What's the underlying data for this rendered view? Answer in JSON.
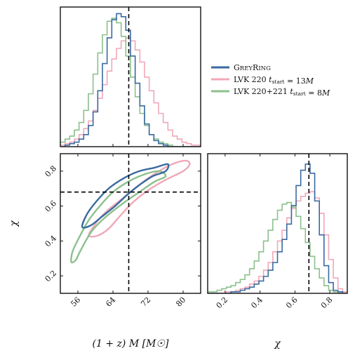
{
  "chart_data": {
    "type": "corner",
    "truth": {
      "mass": 67.6,
      "chi": 0.68
    },
    "legend": [
      {
        "name": "GreyRing",
        "color": "#3a6aa0"
      },
      {
        "name": "LVK 220 t_start = 13M",
        "color": "#f0a8b8"
      },
      {
        "name": "LVK 220+221 t_start = 8M",
        "color": "#8cc08c"
      }
    ],
    "legend_text": [
      {
        "parts": [
          {
            "t": "G"
          },
          {
            "t": "REY",
            "small": true
          },
          {
            "t": "R"
          },
          {
            "t": "ING",
            "small": true
          }
        ]
      },
      {
        "parts": [
          {
            "t": "LVK 220 "
          },
          {
            "t": "t",
            "i": true
          },
          {
            "t": "start",
            "sub": true
          },
          {
            "t": " = 13"
          },
          {
            "t": "M",
            "i": true
          }
        ]
      },
      {
        "parts": [
          {
            "t": "LVK 220+221 "
          },
          {
            "t": "t",
            "i": true
          },
          {
            "t": "start",
            "sub": true
          },
          {
            "t": " = 8"
          },
          {
            "t": "M",
            "i": true
          }
        ]
      }
    ],
    "axes": {
      "mass": {
        "range": [
          52,
          84
        ],
        "ticks": [
          56,
          64,
          72,
          80
        ],
        "tick_labels": [
          "56",
          "64",
          "72",
          "80"
        ]
      },
      "chi": {
        "range": [
          0.1,
          0.9
        ],
        "ticks": [
          0.2,
          0.4,
          0.6,
          0.8
        ],
        "tick_labels": [
          "0.2",
          "0.4",
          "0.6",
          "0.8"
        ]
      }
    },
    "xlabel_mass": "(1 + z) M [M☉]",
    "ylabel_chi": "χ",
    "xlabel_chi": "χ",
    "contours": [
      {
        "name": "LVK 220 t_start = 13M",
        "points": [
          [
            58.5,
            0.43
          ],
          [
            59.5,
            0.48
          ],
          [
            61,
            0.53
          ],
          [
            63,
            0.58
          ],
          [
            65.5,
            0.63
          ],
          [
            68.5,
            0.69
          ],
          [
            71.5,
            0.75
          ],
          [
            74.5,
            0.8
          ],
          [
            77.5,
            0.84
          ],
          [
            80.5,
            0.86
          ],
          [
            81.5,
            0.84
          ],
          [
            80,
            0.8
          ],
          [
            76,
            0.75
          ],
          [
            72,
            0.69
          ],
          [
            68.5,
            0.62
          ],
          [
            65.5,
            0.54
          ],
          [
            63,
            0.47
          ],
          [
            60.5,
            0.43
          ]
        ]
      },
      {
        "name": "LVK 220+221 t_start = 8M",
        "points": [
          [
            54.5,
            0.28
          ],
          [
            54.8,
            0.34
          ],
          [
            56.5,
            0.43
          ],
          [
            58.5,
            0.52
          ],
          [
            61,
            0.6
          ],
          [
            64,
            0.68
          ],
          [
            67.5,
            0.74
          ],
          [
            71,
            0.78
          ],
          [
            74.5,
            0.8
          ],
          [
            76,
            0.77
          ],
          [
            73.5,
            0.74
          ],
          [
            70,
            0.68
          ],
          [
            66,
            0.61
          ],
          [
            62,
            0.53
          ],
          [
            59,
            0.45
          ],
          [
            56.5,
            0.34
          ],
          [
            55.5,
            0.29
          ]
        ]
      },
      {
        "name": "GreyRing",
        "points": [
          [
            57,
            0.48
          ],
          [
            58,
            0.55
          ],
          [
            60,
            0.62
          ],
          [
            63,
            0.7
          ],
          [
            66.5,
            0.76
          ],
          [
            70,
            0.8
          ],
          [
            73.5,
            0.82
          ],
          [
            76.5,
            0.84
          ],
          [
            76,
            0.8
          ],
          [
            73,
            0.77
          ],
          [
            70,
            0.72
          ],
          [
            67.5,
            0.67
          ],
          [
            64.5,
            0.6
          ],
          [
            61.5,
            0.54
          ],
          [
            59,
            0.49
          ]
        ]
      }
    ],
    "hist_mass": [
      {
        "name": "LVK 220 t_start = 13M",
        "values": [
          0.01,
          0.02,
          0.03,
          0.05,
          0.08,
          0.12,
          0.17,
          0.24,
          0.32,
          0.41,
          0.5,
          0.58,
          0.65,
          0.7,
          0.72,
          0.7,
          0.64,
          0.56,
          0.46,
          0.37,
          0.29,
          0.22,
          0.16,
          0.11,
          0.07,
          0.05,
          0.03,
          0.02,
          0.01,
          0.01
        ]
      },
      {
        "name": "LVK 220+221 t_start = 8M",
        "values": [
          0.03,
          0.05,
          0.07,
          0.11,
          0.16,
          0.24,
          0.35,
          0.48,
          0.62,
          0.74,
          0.83,
          0.85,
          0.82,
          0.73,
          0.6,
          0.46,
          0.33,
          0.22,
          0.14,
          0.08,
          0.05,
          0.03,
          0.02,
          0.01,
          0.0,
          0.0,
          0.0,
          0.0,
          0.0,
          0.0
        ]
      },
      {
        "name": "GreyRing",
        "values": [
          0.0,
          0.01,
          0.02,
          0.03,
          0.05,
          0.08,
          0.14,
          0.23,
          0.37,
          0.55,
          0.72,
          0.84,
          0.88,
          0.86,
          0.77,
          0.6,
          0.42,
          0.27,
          0.15,
          0.08,
          0.04,
          0.02,
          0.01,
          0.0,
          0.0,
          0.0,
          0.0,
          0.0,
          0.0,
          0.0
        ]
      }
    ],
    "hist_chi": [
      {
        "name": "LVK 220 t_start = 13M",
        "values": [
          0.0,
          0.0,
          0.0,
          0.0,
          0.01,
          0.01,
          0.02,
          0.03,
          0.04,
          0.06,
          0.08,
          0.11,
          0.15,
          0.2,
          0.27,
          0.34,
          0.41,
          0.49,
          0.55,
          0.6,
          0.63,
          0.65,
          0.66,
          0.62,
          0.52,
          0.38,
          0.22,
          0.1,
          0.03,
          0.01
        ]
      },
      {
        "name": "LVK 220+221 t_start = 8M",
        "values": [
          0.01,
          0.01,
          0.02,
          0.03,
          0.04,
          0.05,
          0.07,
          0.09,
          0.12,
          0.16,
          0.21,
          0.27,
          0.34,
          0.41,
          0.48,
          0.54,
          0.58,
          0.59,
          0.56,
          0.5,
          0.42,
          0.33,
          0.24,
          0.16,
          0.1,
          0.05,
          0.02,
          0.01,
          0.0,
          0.0
        ]
      },
      {
        "name": "GreyRing",
        "values": [
          0.0,
          0.0,
          0.0,
          0.0,
          0.0,
          0.01,
          0.01,
          0.02,
          0.03,
          0.04,
          0.06,
          0.08,
          0.11,
          0.15,
          0.2,
          0.27,
          0.35,
          0.45,
          0.57,
          0.7,
          0.8,
          0.84,
          0.78,
          0.6,
          0.38,
          0.18,
          0.07,
          0.02,
          0.01,
          0.0
        ]
      }
    ]
  }
}
